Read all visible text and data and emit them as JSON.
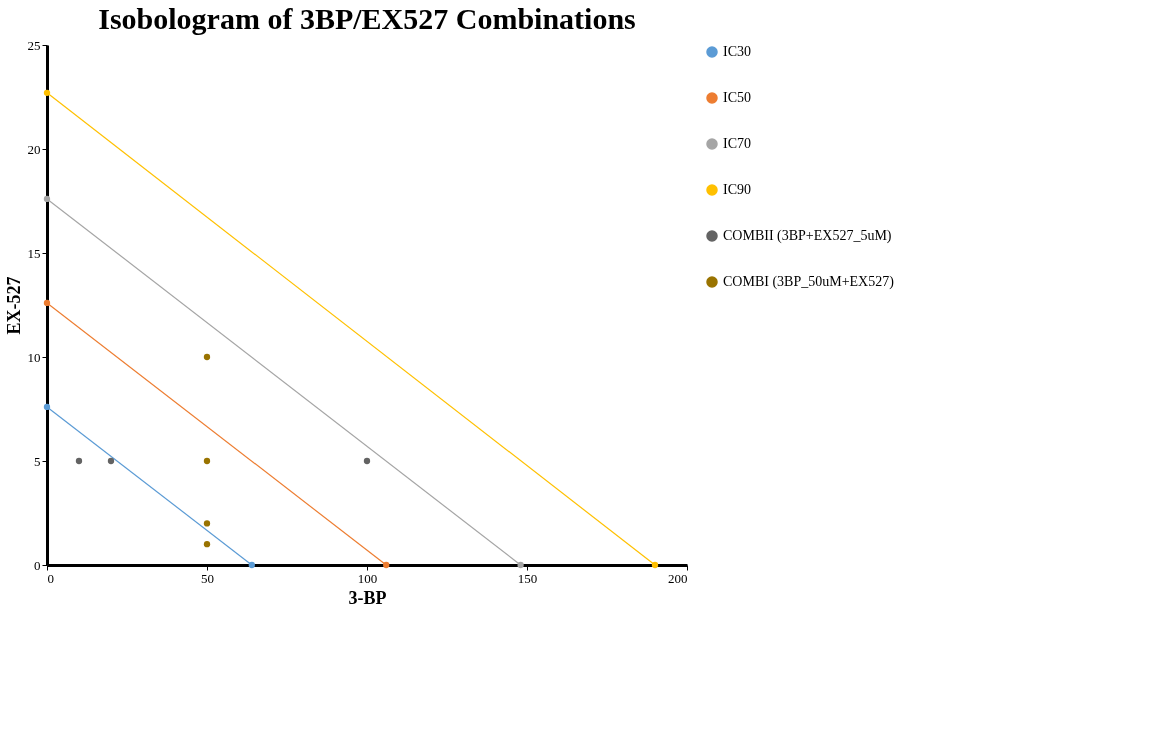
{
  "chart_data": {
    "type": "line",
    "title": "Isobologram of 3BP/EX527  Combinations",
    "xlabel": "3-BP",
    "ylabel": "EX-527",
    "xlim": [
      0,
      200
    ],
    "xticks": [
      0,
      50,
      100,
      150,
      200
    ],
    "ylim": [
      0,
      25
    ],
    "yticks": [
      0,
      5,
      10,
      15,
      20,
      25
    ],
    "grid": false,
    "legend": "right",
    "marker": "circle",
    "line_style": "solid",
    "series": [
      {
        "name": "IC30",
        "color": "#5b9bd5",
        "x": [
          0,
          64
        ],
        "values": [
          7.6,
          0
        ]
      },
      {
        "name": "IC50",
        "color": "#ed7d31",
        "x": [
          0,
          106
        ],
        "values": [
          12.6,
          0
        ]
      },
      {
        "name": "IC70",
        "color": "#a5a5a5",
        "x": [
          0,
          148
        ],
        "values": [
          17.6,
          0
        ]
      },
      {
        "name": "IC90",
        "color": "#ffc000",
        "x": [
          0,
          190
        ],
        "values": [
          22.7,
          0
        ]
      },
      {
        "name": "COMBII (3BP+EX527_5uM)",
        "color": "#636363",
        "type": "scatter",
        "x": [
          10,
          20,
          100
        ],
        "values": [
          5,
          5,
          5
        ]
      },
      {
        "name": "COMBI (3BP_50uM+EX527)",
        "color": "#997300",
        "type": "scatter",
        "x": [
          50,
          50,
          50,
          50
        ],
        "values": [
          10,
          5,
          2,
          1
        ]
      }
    ]
  }
}
